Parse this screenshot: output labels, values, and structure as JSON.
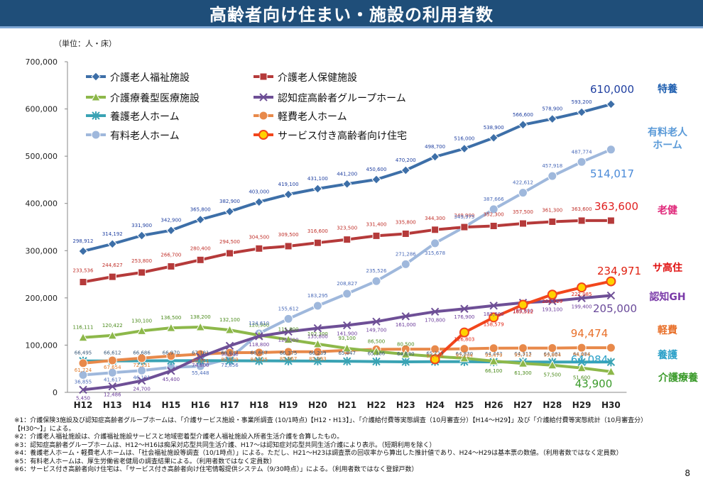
{
  "page": {
    "title": "高齢者向け住まい・施設の利用者数",
    "unit_label": "（単位：人・床）",
    "page_number": "8"
  },
  "notes": [
    "※1：介護保険3施設及び認知症高齢者グループホームは、「介護サービス施設・事業所調査 (10/1時点)【H12・H13】」、「介護給付費等実態調査（10月審査分）【H14～H29】」及び「介護給付費等実態統計（10月審査分）",
    "【H30～】」による。",
    "※2：介護老人福祉施設は、介護福祉施設サービスと地域密着型介護老人福祉施設入所者生活介護を合算したもの。",
    "※3：認知症高齢者グループホームは、H12～H16は痴呆対応型共同生活介護、H17～は認知症対応型共同生活介護により表示。（短期利用を除く）",
    "※4：養護老人ホーム・軽費老人ホームは、「社会福祉施設等調査（10/1時点）」による。ただし、H21～H23は調査票の回収率から算出した推計値であり、H24～H29は基本票の数値。（利用者数ではなく定員数）",
    "※5：有料老人ホームは、厚生労働省老健局の調査結果による。（利用者数ではなく定員数）",
    "※6：サービス付き高齢者向け住宅は、「サービス付き高齢者向け住宅情報提供システム（9/30時点）」による。（利用者数ではなく登録戸数）"
  ],
  "chart_data": {
    "type": "line",
    "categories": [
      "H12",
      "H13",
      "H14",
      "H15",
      "H16",
      "H17",
      "H18",
      "H19",
      "H20",
      "H21",
      "H22",
      "H23",
      "H24",
      "H25",
      "H26",
      "H27",
      "H28",
      "H29",
      "H30"
    ],
    "ylim": [
      0,
      700000
    ],
    "yticks": [
      0,
      100000,
      200000,
      300000,
      400000,
      500000,
      600000,
      700000
    ],
    "ytick_labels": [
      "0",
      "100,000",
      "200,000",
      "300,000",
      "400,000",
      "500,000",
      "600,000",
      "700,000"
    ],
    "grid": false,
    "legend_position": "top-left",
    "series": [
      {
        "name": "介護老人福祉施設",
        "color": "#3d6fa8",
        "marker": "diamond",
        "label_color": "#1f3fa0",
        "side_label": "特養",
        "side_color": "#1f5fb0",
        "values": [
          298912,
          314192,
          331900,
          342900,
          365800,
          382900,
          403000,
          419100,
          431100,
          441200,
          450600,
          470200,
          498700,
          516000,
          538900,
          566600,
          578900,
          593200,
          610000
        ],
        "labels": [
          "298,912",
          "314,192",
          "331,900",
          "342,900",
          "365,800",
          "382,900",
          "403,000",
          "419,100",
          "431,100",
          "441,200",
          "450,600",
          "470,200",
          "498,700",
          "516,000",
          "538,900",
          "566,600",
          "578,900",
          "593,200",
          "610,000"
        ]
      },
      {
        "name": "介護老人保健施設",
        "color": "#b53a3a",
        "marker": "square",
        "label_color": "#c0302a",
        "side_label": "老健",
        "side_color": "#e0287a",
        "values": [
          233536,
          244627,
          253800,
          266700,
          280400,
          294500,
          304500,
          309500,
          316600,
          323500,
          331400,
          335800,
          344300,
          349900,
          352300,
          357500,
          361300,
          363600,
          363600
        ],
        "labels": [
          "233,536",
          "244,627",
          "253,800",
          "266,700",
          "280,400",
          "294,500",
          "304,500",
          "309,500",
          "316,600",
          "323,500",
          "331,400",
          "335,800",
          "344,300",
          "349,900",
          "352,300",
          "357,500",
          "361,300",
          "363,600",
          "363,600"
        ]
      },
      {
        "name": "介護療養型医療施設",
        "color": "#8db84a",
        "marker": "triangle",
        "label_color": "#4a8a1a",
        "side_label": "介護療養",
        "side_color": "#3a9a2a",
        "values": [
          116111,
          120422,
          130100,
          136500,
          138200,
          132100,
          120900,
          111800,
          102300,
          93100,
          86500,
          80500,
          76000,
          72200,
          66100,
          61300,
          57500,
          51600,
          43900
        ],
        "labels": [
          "116,111",
          "120,422",
          "130,100",
          "136,500",
          "138,200",
          "132,100",
          "120,900",
          "111,800",
          "102,300",
          "93,100",
          "86,500",
          "80,500",
          "",
          "",
          "66,100",
          "61,300",
          "57,500",
          "51,600",
          "43,900"
        ]
      },
      {
        "name": "認知症高齢者グループホーム",
        "color": "#6e4f96",
        "marker": "x",
        "label_color": "#6a3a9a",
        "side_label": "認知GH",
        "side_color": "#7a3aa8",
        "values": [
          5450,
          12486,
          24700,
          45400,
          74800,
          98500,
          118800,
          128500,
          135800,
          141900,
          149700,
          161000,
          170800,
          176900,
          183600,
          189800,
          193100,
          199400,
          205000
        ],
        "labels": [
          "5,450",
          "12,486",
          "24,700",
          "45,400",
          "74,800",
          "98,500",
          "118,800",
          "128,500",
          "135,800",
          "141,900",
          "149,700",
          "161,000",
          "170,800",
          "176,900",
          "183,600",
          "189,800",
          "193,100",
          "199,400",
          "205,000"
        ]
      },
      {
        "name": "養護老人ホーム",
        "color": "#3aa3b4",
        "marker": "star",
        "label_color": "#3a5a7a",
        "side_label": "養護",
        "side_color": "#2aa0c8",
        "values": [
          66495,
          66612,
          66686,
          66970,
          67181,
          66837,
          66667,
          66375,
          66239,
          65847,
          65186,
          64630,
          65113,
          64830,
          64443,
          64313,
          64081,
          64084,
          64084
        ],
        "labels": [
          "66,495",
          "66,612",
          "66,686",
          "66,970",
          "67,181",
          "66,837",
          "66,667",
          "66,375",
          "66,239",
          "65,847",
          "65,186",
          "64,630",
          "65,113",
          "64,830",
          "64,443",
          "64,313",
          "64,081",
          "64,084",
          "64,084"
        ]
      },
      {
        "name": "軽費老人ホーム",
        "color": "#e8894a",
        "marker": "circle",
        "label_color": "#e07a2a",
        "side_label": "軽費",
        "side_color": "#e8702a",
        "values": [
          61724,
          67654,
          72331,
          77000,
          80951,
          83929,
          84325,
          85867,
          85993,
          89000,
          91000,
          91474,
          91474,
          92204,
          93479,
          93712,
          93804,
          94474,
          94474
        ],
        "labels": [
          "61,724",
          "67,654",
          "72,331",
          "",
          "80,951",
          "83,929",
          "84,325",
          "85,867",
          "85,993",
          "",
          "",
          "",
          "91,474",
          "92,204",
          "93,479",
          "93,712",
          "93,804",
          "94,474",
          ""
        ]
      },
      {
        "name": "有料老人ホーム",
        "color": "#9fb8dc",
        "marker": "circle",
        "label_color": "#4a6ab8",
        "side_label": "有料老人ホーム",
        "side_color": "#5a9ad8",
        "values": [
          36855,
          41617,
          46121,
          53000,
          55448,
          71856,
          124610,
          155612,
          183295,
          208827,
          235526,
          271286,
          315678,
          349975,
          387666,
          422612,
          457918,
          487774,
          514017
        ],
        "labels": [
          "36,855",
          "41,617",
          "46,121",
          "",
          "55,448",
          "71,856",
          "124,610",
          "155,612",
          "183,295",
          "208,827",
          "235,526",
          "271,286",
          "315,678",
          "349,975",
          "387,666",
          "422,612",
          "457,918",
          "487,774",
          "514,017"
        ]
      },
      {
        "name": "サービス付き高齢者向け住宅",
        "color": "#f2461c",
        "marker": "sun",
        "label_color": "#e02010",
        "side_label": "サ高住",
        "side_color": "#e01010",
        "start_index": 12,
        "values": [
          null,
          null,
          null,
          null,
          null,
          null,
          null,
          null,
          null,
          null,
          null,
          null,
          70000,
          126803,
          158579,
          185512,
          206929,
          222085,
          234971
        ],
        "labels": [
          "",
          "",
          "",
          "",
          "",
          "",
          "",
          "",
          "",
          "",
          "",
          "",
          "",
          "126,803",
          "158,579",
          "185,512",
          "206,929",
          "222,085",
          "234,971"
        ]
      }
    ]
  }
}
